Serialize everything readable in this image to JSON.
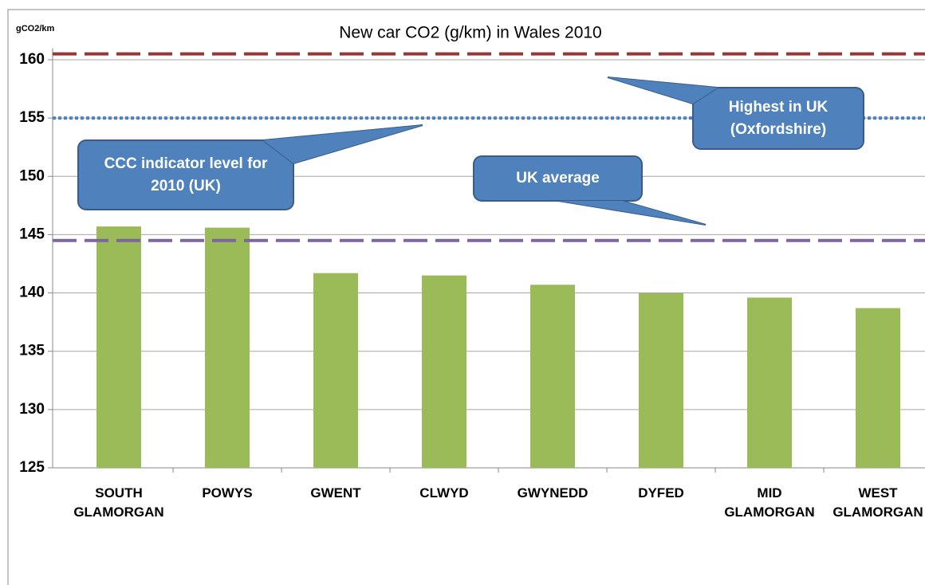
{
  "chart_data": {
    "type": "bar",
    "title": "New car CO2 (g/km) in Wales 2010",
    "y_axis_label": "gCO2/km",
    "categories": [
      "SOUTH\nGLAMORGAN",
      "POWYS",
      "GWENT",
      "CLWYD",
      "GWYNEDD",
      "DYFED",
      "MID\nGLAMORGAN",
      "WEST\nGLAMORGAN"
    ],
    "values": [
      145.7,
      145.6,
      141.7,
      141.5,
      140.7,
      140.0,
      139.6,
      138.7
    ],
    "color": "#9bbb59",
    "ylim": [
      125,
      161
    ],
    "yticks": [
      125,
      130,
      135,
      140,
      145,
      150,
      155,
      160
    ],
    "grid": true,
    "reference_lines": [
      {
        "value": 160.5,
        "color": "#953735",
        "style": "dashed"
      },
      {
        "value": 155,
        "color": "#4f81bd",
        "style": "dotted"
      },
      {
        "value": 144.5,
        "color": "#8064a2",
        "style": "dashed"
      }
    ],
    "annotations": [
      "CCC indicator level for\n2010 (UK)",
      "UK average",
      "Highest in UK\n(Oxfordshire)"
    ]
  }
}
